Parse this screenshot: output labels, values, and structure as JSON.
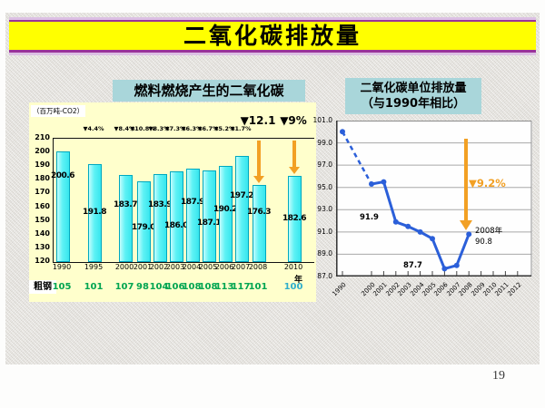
{
  "slide": {
    "title": "二氧化碳排放量",
    "page_number": "19"
  },
  "left_chart": {
    "title": "燃料燃烧产生的二氧化碳",
    "unit_label": "（百万吨-CO2）",
    "year_label": "年",
    "crude_steel_label": "粗钢"
  },
  "right_chart": {
    "title_line1": "二氧化碳单位排放量",
    "title_line2": "（与1990年相比）",
    "annotation": "▼9.2%",
    "label_2002": "91.9",
    "label_low": "87.7",
    "label_2008_line1": "2008年",
    "label_2008_line2": "90.8"
  },
  "colors": {
    "banner_yellow": "#FFFF00",
    "banner_border_purple": "#993399",
    "chart_title_bg": "#A9D6DA",
    "panel_yellow": "#FFFFCC",
    "bar_cyan": "#5EF2F5",
    "steel_green": "#00A551",
    "steel_cyan": "#2FAECB",
    "line_blue": "#2B5FD9",
    "arrow_orange": "#F2A024"
  },
  "chart_data": [
    {
      "type": "bar",
      "title": "燃料燃烧产生的二氧化碳",
      "ylabel": "（百万吨-CO2）",
      "xlabel": "年",
      "ylim": [
        120,
        210
      ],
      "y_ticks": [
        "210",
        "200",
        "190",
        "180",
        "170",
        "160",
        "150",
        "140",
        "130",
        "120"
      ],
      "categories": [
        "1990",
        "1995",
        "2000",
        "2001",
        "2002",
        "2003",
        "2004",
        "2005",
        "2006",
        "2007",
        "2008",
        "2010"
      ],
      "values": [
        200.6,
        191.8,
        183.7,
        179.0,
        183.9,
        186.0,
        187.9,
        187.1,
        190.2,
        197.2,
        176.3,
        182.6
      ],
      "drop_vs_1990": [
        "",
        "▼4.4%",
        "▼8.4%",
        "▼10.8%",
        "▼8.3%",
        "▼7.3%",
        "▼6.3%",
        "▼6.7%",
        "▼5.2%",
        "▼1.7%",
        "▼12.1",
        "▼9%"
      ],
      "arrow_categories": [
        "2008",
        "2010"
      ],
      "crude_steel_index": [
        "105",
        "101",
        "107",
        "98",
        "104",
        "106",
        "108",
        "108",
        "113",
        "117",
        "101",
        "100"
      ],
      "grid": false,
      "legend": false
    },
    {
      "type": "line",
      "title": "二氧化碳单位排放量（与1990年相比）",
      "ylim": [
        87,
        101
      ],
      "y_ticks": [
        "101.0",
        "99.0",
        "97.0",
        "95.0",
        "93.0",
        "91.0",
        "89.0",
        "87.0"
      ],
      "x_ticks": [
        "1990",
        "2000",
        "2001",
        "2002",
        "2003",
        "2004",
        "2005",
        "2006",
        "2007",
        "2008",
        "2009",
        "2010",
        "2011",
        "2012"
      ],
      "x": [
        "1990",
        "2000",
        "2001",
        "2002",
        "2003",
        "2004",
        "2005",
        "2006",
        "2007",
        "2008"
      ],
      "values": [
        100.0,
        95.3,
        95.5,
        91.9,
        91.5,
        91.0,
        90.4,
        87.7,
        88.0,
        90.8
      ],
      "dashed_segment": [
        "1990",
        "2000"
      ],
      "annotation": "▼9.2%",
      "point_labels": {
        "2002": "91.9",
        "2006": "87.7",
        "2008": "2008年 90.8"
      },
      "grid": true,
      "legend": false
    }
  ]
}
